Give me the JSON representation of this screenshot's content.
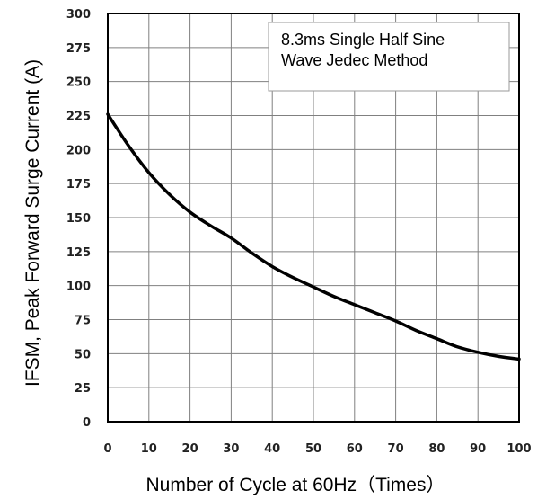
{
  "chart_data": {
    "type": "line",
    "title": "",
    "xlabel": "Number of Cycle at 60Hz（Times）",
    "ylabel": "IFSM, Peak Forward Surge Current (A)",
    "xlim": [
      0,
      100
    ],
    "ylim": [
      0,
      300
    ],
    "x_ticks": [
      "0",
      "10",
      "20",
      "30",
      "40",
      "50",
      "60",
      "70",
      "80",
      "90",
      "100"
    ],
    "y_ticks": [
      "0",
      "25",
      "50",
      "75",
      "100",
      "125",
      "150",
      "175",
      "200",
      "225",
      "250",
      "275",
      "300"
    ],
    "grid": true,
    "legend_position": "top-right",
    "legend_lines": [
      "8.3ms  Single  Half  Sine",
      "Wave  Jedec  Method"
    ],
    "series": [
      {
        "x": [
          0,
          5,
          10,
          15,
          20,
          25,
          30,
          35,
          40,
          45,
          50,
          55,
          60,
          65,
          70,
          75,
          80,
          85,
          90,
          95,
          100
        ],
        "y": [
          226,
          203,
          183,
          167,
          154,
          144,
          135,
          124,
          114,
          106,
          99,
          92,
          86,
          80,
          74,
          67,
          61,
          55,
          51,
          48,
          46
        ]
      }
    ],
    "colors": {
      "line": "#000000",
      "grid": "#808080",
      "frame": "#000000"
    }
  }
}
